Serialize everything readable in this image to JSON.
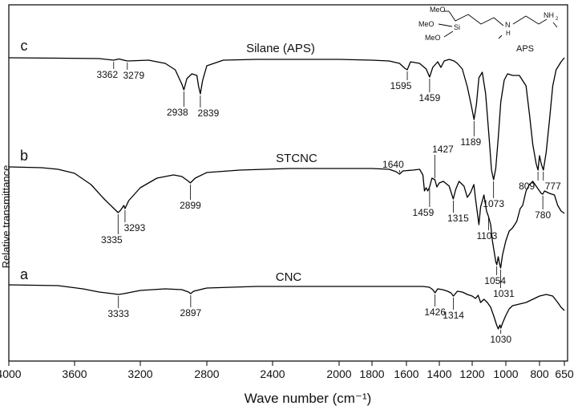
{
  "chart_data": {
    "type": "line",
    "xlabel": "Wave number (cm⁻¹)",
    "ylabel": "Relative transmittance",
    "xlim": [
      4000,
      650
    ],
    "x_reversed": true,
    "x_ticks": [
      4000,
      3600,
      3200,
      2800,
      2400,
      2000,
      1800,
      1600,
      1400,
      1200,
      1000,
      800,
      650
    ],
    "y_ticks": [],
    "grid": false,
    "legend": "none",
    "series": [
      {
        "name": "Silane (APS)",
        "letter": "c",
        "offset": 72,
        "points": [
          [
            4000,
            0
          ],
          [
            3700,
            0.5
          ],
          [
            3450,
            1
          ],
          [
            3362,
            3
          ],
          [
            3330,
            1.5
          ],
          [
            3279,
            4
          ],
          [
            3150,
            3
          ],
          [
            3050,
            7
          ],
          [
            2990,
            15
          ],
          [
            2950,
            33
          ],
          [
            2938,
            40
          ],
          [
            2920,
            26
          ],
          [
            2890,
            20
          ],
          [
            2860,
            22
          ],
          [
            2850,
            35
          ],
          [
            2839,
            45
          ],
          [
            2825,
            28
          ],
          [
            2800,
            10
          ],
          [
            2700,
            3
          ],
          [
            2500,
            2
          ],
          [
            2000,
            2
          ],
          [
            1800,
            3
          ],
          [
            1700,
            4
          ],
          [
            1640,
            7
          ],
          [
            1610,
            13
          ],
          [
            1595,
            15
          ],
          [
            1575,
            5
          ],
          [
            1520,
            7
          ],
          [
            1480,
            14
          ],
          [
            1459,
            24
          ],
          [
            1440,
            12
          ],
          [
            1410,
            5
          ],
          [
            1390,
            12
          ],
          [
            1370,
            4
          ],
          [
            1340,
            2
          ],
          [
            1310,
            4
          ],
          [
            1290,
            7
          ],
          [
            1260,
            14
          ],
          [
            1230,
            36
          ],
          [
            1205,
            60
          ],
          [
            1189,
            77
          ],
          [
            1175,
            58
          ],
          [
            1160,
            25
          ],
          [
            1140,
            18
          ],
          [
            1120,
            45
          ],
          [
            1100,
            98
          ],
          [
            1085,
            140
          ],
          [
            1073,
            152
          ],
          [
            1060,
            138
          ],
          [
            1045,
            100
          ],
          [
            1030,
            55
          ],
          [
            1010,
            28
          ],
          [
            990,
            20
          ],
          [
            960,
            22
          ],
          [
            920,
            22
          ],
          [
            880,
            35
          ],
          [
            860,
            70
          ],
          [
            840,
            108
          ],
          [
            820,
            132
          ],
          [
            809,
            140
          ],
          [
            800,
            122
          ],
          [
            790,
            132
          ],
          [
            777,
            140
          ],
          [
            760,
            118
          ],
          [
            740,
            78
          ],
          [
            720,
            35
          ],
          [
            700,
            15
          ],
          [
            670,
            5
          ],
          [
            650,
            0
          ]
        ]
      },
      {
        "name": "STCNC",
        "letter": "b",
        "offset": 208,
        "points": [
          [
            4000,
            0
          ],
          [
            3800,
            1
          ],
          [
            3700,
            3
          ],
          [
            3600,
            8
          ],
          [
            3500,
            22
          ],
          [
            3420,
            40
          ],
          [
            3360,
            52
          ],
          [
            3335,
            57
          ],
          [
            3320,
            54
          ],
          [
            3300,
            48
          ],
          [
            3293,
            52
          ],
          [
            3270,
            42
          ],
          [
            3200,
            26
          ],
          [
            3100,
            14
          ],
          [
            3000,
            10
          ],
          [
            2950,
            12
          ],
          [
            2910,
            18
          ],
          [
            2899,
            20
          ],
          [
            2870,
            14
          ],
          [
            2800,
            7
          ],
          [
            2600,
            4
          ],
          [
            2300,
            2
          ],
          [
            2000,
            2
          ],
          [
            1800,
            2
          ],
          [
            1700,
            3
          ],
          [
            1660,
            6
          ],
          [
            1640,
            9
          ],
          [
            1620,
            5
          ],
          [
            1560,
            4
          ],
          [
            1520,
            3
          ],
          [
            1500,
            10
          ],
          [
            1490,
            30
          ],
          [
            1480,
            26
          ],
          [
            1470,
            30
          ],
          [
            1459,
            25
          ],
          [
            1445,
            14
          ],
          [
            1427,
            16
          ],
          [
            1415,
            25
          ],
          [
            1400,
            20
          ],
          [
            1375,
            18
          ],
          [
            1340,
            24
          ],
          [
            1315,
            40
          ],
          [
            1300,
            28
          ],
          [
            1280,
            18
          ],
          [
            1250,
            24
          ],
          [
            1230,
            38
          ],
          [
            1210,
            32
          ],
          [
            1190,
            22
          ],
          [
            1180,
            40
          ],
          [
            1170,
            56
          ],
          [
            1160,
            72
          ],
          [
            1150,
            50
          ],
          [
            1130,
            35
          ],
          [
            1115,
            55
          ],
          [
            1103,
            62
          ],
          [
            1090,
            72
          ],
          [
            1080,
            92
          ],
          [
            1070,
            105
          ],
          [
            1060,
            118
          ],
          [
            1054,
            122
          ],
          [
            1045,
            112
          ],
          [
            1038,
            120
          ],
          [
            1031,
            126
          ],
          [
            1020,
            110
          ],
          [
            1000,
            92
          ],
          [
            980,
            80
          ],
          [
            960,
            76
          ],
          [
            935,
            68
          ],
          [
            915,
            52
          ],
          [
            900,
            48
          ],
          [
            880,
            30
          ],
          [
            860,
            22
          ],
          [
            840,
            18
          ],
          [
            820,
            24
          ],
          [
            800,
            30
          ],
          [
            790,
            33
          ],
          [
            780,
            34
          ],
          [
            770,
            30
          ],
          [
            740,
            33
          ],
          [
            710,
            35
          ],
          [
            690,
            48
          ],
          [
            670,
            55
          ],
          [
            650,
            58
          ]
        ]
      },
      {
        "name": "CNC",
        "letter": "a",
        "offset": 355,
        "points": [
          [
            4000,
            0
          ],
          [
            3700,
            1
          ],
          [
            3550,
            5
          ],
          [
            3450,
            9
          ],
          [
            3370,
            11
          ],
          [
            3333,
            12
          ],
          [
            3300,
            11
          ],
          [
            3200,
            7
          ],
          [
            3050,
            5
          ],
          [
            2950,
            6
          ],
          [
            2910,
            9
          ],
          [
            2897,
            11
          ],
          [
            2880,
            8
          ],
          [
            2800,
            4
          ],
          [
            2500,
            2
          ],
          [
            2000,
            2
          ],
          [
            1800,
            2
          ],
          [
            1600,
            2
          ],
          [
            1500,
            2
          ],
          [
            1460,
            3
          ],
          [
            1440,
            6
          ],
          [
            1426,
            10
          ],
          [
            1410,
            5
          ],
          [
            1380,
            6
          ],
          [
            1350,
            8
          ],
          [
            1330,
            10
          ],
          [
            1314,
            14
          ],
          [
            1290,
            8
          ],
          [
            1260,
            9
          ],
          [
            1230,
            12
          ],
          [
            1200,
            14
          ],
          [
            1180,
            17
          ],
          [
            1165,
            13
          ],
          [
            1150,
            22
          ],
          [
            1130,
            18
          ],
          [
            1110,
            22
          ],
          [
            1090,
            28
          ],
          [
            1080,
            34
          ],
          [
            1070,
            40
          ],
          [
            1055,
            50
          ],
          [
            1045,
            55
          ],
          [
            1035,
            50
          ],
          [
            1030,
            54
          ],
          [
            1020,
            48
          ],
          [
            1000,
            38
          ],
          [
            980,
            30
          ],
          [
            960,
            26
          ],
          [
            920,
            24
          ],
          [
            880,
            22
          ],
          [
            840,
            18
          ],
          [
            800,
            14
          ],
          [
            760,
            12
          ],
          [
            720,
            14
          ],
          [
            690,
            22
          ],
          [
            670,
            28
          ],
          [
            650,
            32
          ]
        ]
      }
    ],
    "peak_labels": [
      {
        "series": 0,
        "x": 3362,
        "text": "3362"
      },
      {
        "series": 0,
        "x": 3279,
        "text": "3279"
      },
      {
        "series": 0,
        "x": 2938,
        "text": "2938"
      },
      {
        "series": 0,
        "x": 2839,
        "text": "2839"
      },
      {
        "series": 0,
        "x": 1595,
        "text": "1595"
      },
      {
        "series": 0,
        "x": 1459,
        "text": "1459"
      },
      {
        "series": 0,
        "x": 1189,
        "text": "1189"
      },
      {
        "series": 0,
        "x": 1073,
        "text": "1073"
      },
      {
        "series": 0,
        "x": 809,
        "text": "809"
      },
      {
        "series": 0,
        "x": 777,
        "text": "777"
      },
      {
        "series": 1,
        "x": 3335,
        "text": "3335"
      },
      {
        "series": 1,
        "x": 3293,
        "text": "3293"
      },
      {
        "series": 1,
        "x": 2899,
        "text": "2899"
      },
      {
        "series": 1,
        "x": 1640,
        "text": "1640"
      },
      {
        "series": 1,
        "x": 1427,
        "text": "1427"
      },
      {
        "series": 1,
        "x": 1459,
        "text": "1459"
      },
      {
        "series": 1,
        "x": 1315,
        "text": "1315"
      },
      {
        "series": 1,
        "x": 1103,
        "text": "1103"
      },
      {
        "series": 1,
        "x": 1054,
        "text": "1054"
      },
      {
        "series": 1,
        "x": 1031,
        "text": "1031"
      },
      {
        "series": 1,
        "x": 780,
        "text": "780"
      },
      {
        "series": 2,
        "x": 3333,
        "text": "3333"
      },
      {
        "series": 2,
        "x": 2897,
        "text": "2897"
      },
      {
        "series": 2,
        "x": 1426,
        "text": "1426"
      },
      {
        "series": 2,
        "x": 1314,
        "text": "1314"
      },
      {
        "series": 2,
        "x": 1030,
        "text": "1030"
      }
    ],
    "inset": {
      "caption": "APS",
      "groups": [
        "MeO",
        "MeO",
        "MeO",
        "Si",
        "N",
        "H",
        "NH",
        "2"
      ]
    }
  }
}
